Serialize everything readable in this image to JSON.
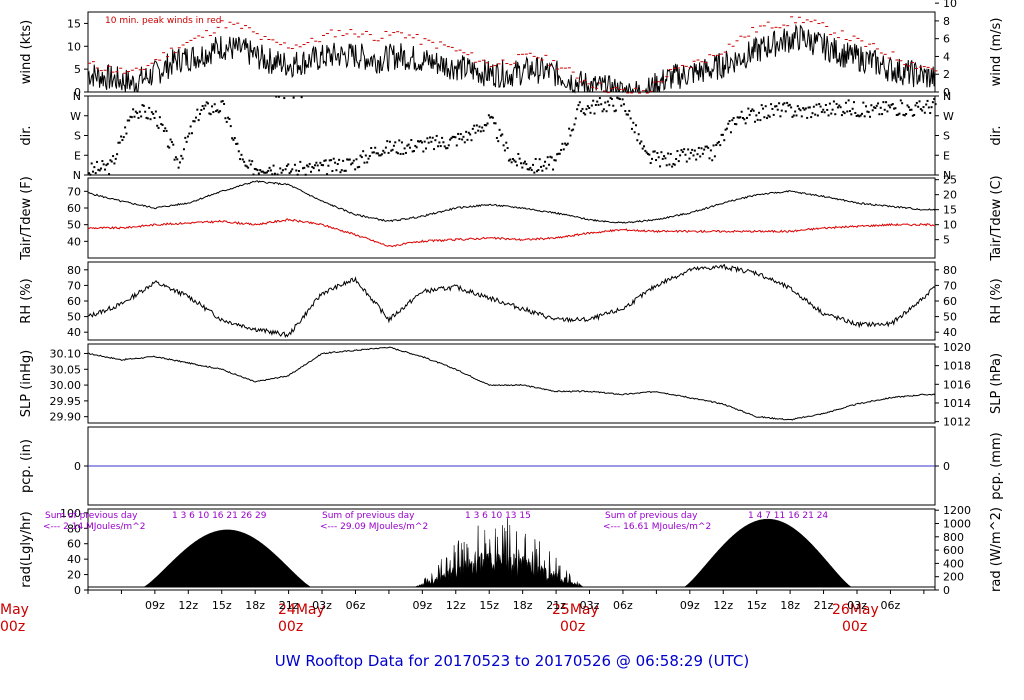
{
  "title": "UW Rooftop Data for 20170523  to  20170526 @ 06:58:29  (UTC)",
  "chart_data": [
    {
      "type": "line",
      "panel": "wind",
      "ylabel_left": "wind (kts)",
      "ylabel_right": "wind (m/s)",
      "ylim": [
        0,
        17.5
      ],
      "yticks_left": [
        "0",
        "5",
        "10",
        "15"
      ],
      "yticks_right": [
        "0",
        "2",
        "4",
        "6",
        "8",
        "10"
      ],
      "annotation": "10 min. peak winds in red",
      "series": [
        {
          "color": "#000000",
          "x": [
            0,
            2,
            4,
            6,
            8,
            10,
            12,
            14,
            16,
            18,
            20,
            22,
            24,
            26,
            28,
            30,
            32,
            34,
            36,
            38,
            40,
            42,
            44,
            46,
            48,
            50,
            52,
            54,
            56,
            58,
            60,
            62,
            64,
            66,
            68,
            70,
            72,
            74,
            76
          ],
          "values": [
            4,
            3,
            2,
            4,
            7,
            8,
            10,
            9,
            7,
            6,
            7,
            8,
            8,
            7,
            8,
            7,
            6,
            5,
            4,
            4,
            5,
            4,
            2,
            1,
            0,
            0,
            3,
            4,
            5,
            7,
            9,
            11,
            12,
            10,
            8,
            7,
            5,
            4,
            3
          ]
        },
        {
          "color": "#cc0000",
          "x": [
            0,
            2,
            4,
            6,
            8,
            10,
            12,
            14,
            16,
            18,
            20,
            22,
            24,
            26,
            28,
            30,
            32,
            34,
            36,
            38,
            40,
            42,
            44,
            46,
            48,
            50,
            52,
            54,
            56,
            58,
            60,
            62,
            64,
            66,
            68,
            70,
            72,
            74,
            76
          ],
          "values": [
            6,
            5,
            4,
            7,
            10,
            12,
            15,
            14,
            11,
            10,
            11,
            13,
            13,
            12,
            13,
            11,
            10,
            8,
            6,
            7,
            8,
            6,
            3,
            1,
            0,
            0,
            4,
            6,
            8,
            11,
            14,
            15,
            16,
            14,
            12,
            10,
            8,
            6,
            5
          ]
        }
      ]
    },
    {
      "type": "scatter",
      "panel": "dir",
      "ylabel_left": "dir.",
      "ylabel_right": "dir.",
      "yticks": [
        "N",
        "E",
        "S",
        "W",
        "N"
      ],
      "ylim": [
        0,
        360
      ],
      "x": [
        0,
        2,
        4,
        6,
        8,
        10,
        12,
        14,
        16,
        18,
        20,
        22,
        24,
        26,
        28,
        30,
        32,
        34,
        36,
        38,
        40,
        42,
        44,
        46,
        48,
        50,
        52,
        54,
        56,
        58,
        60,
        62,
        64,
        66,
        68,
        70,
        72,
        74,
        76
      ],
      "values": [
        20,
        40,
        300,
        270,
        60,
        300,
        310,
        30,
        40,
        20,
        30,
        40,
        60,
        120,
        130,
        140,
        150,
        180,
        250,
        70,
        40,
        60,
        300,
        320,
        330,
        80,
        70,
        90,
        100,
        260,
        280,
        300,
        290,
        300,
        310,
        290,
        310,
        300,
        320
      ]
    },
    {
      "type": "line",
      "panel": "temp",
      "ylabel_left": "Tair/Tdew (F)",
      "ylabel_right": "Tair/Tdew (C)",
      "ylim": [
        30,
        78
      ],
      "yticks_left": [
        "40",
        "50",
        "60",
        "70"
      ],
      "yticks_right": [
        "5",
        "10",
        "15",
        "20",
        "25"
      ],
      "series": [
        {
          "name": "",
          "color": "#000000",
          "x": [
            0,
            3,
            6,
            9,
            12,
            15,
            18,
            21,
            24,
            27,
            30,
            33,
            36,
            39,
            42,
            45,
            48,
            51,
            54,
            57,
            60,
            63,
            66,
            69,
            72,
            75,
            76
          ],
          "values": [
            69,
            64,
            60,
            63,
            70,
            76,
            74,
            64,
            56,
            52,
            55,
            60,
            62,
            60,
            57,
            53,
            51,
            53,
            57,
            63,
            68,
            70,
            67,
            63,
            61,
            59,
            59
          ]
        },
        {
          "name": "",
          "color": "#dd0000",
          "x": [
            0,
            3,
            6,
            9,
            12,
            15,
            18,
            21,
            24,
            27,
            30,
            33,
            36,
            39,
            42,
            45,
            48,
            51,
            54,
            57,
            60,
            63,
            66,
            69,
            72,
            75,
            76
          ],
          "values": [
            48,
            48,
            50,
            51,
            52,
            50,
            53,
            50,
            44,
            37,
            40,
            41,
            42,
            41,
            42,
            45,
            47,
            46,
            46,
            46,
            46,
            46,
            48,
            49,
            50,
            50,
            50
          ]
        }
      ]
    },
    {
      "type": "line",
      "panel": "rh",
      "ylabel_left": "RH (%)",
      "ylabel_right": "RH (%)",
      "ylim": [
        35,
        85
      ],
      "yticks": [
        "40",
        "50",
        "60",
        "70",
        "80"
      ],
      "x": [
        0,
        3,
        6,
        9,
        12,
        15,
        18,
        21,
        24,
        27,
        30,
        33,
        36,
        39,
        42,
        45,
        48,
        51,
        54,
        57,
        60,
        63,
        66,
        69,
        72,
        75,
        76
      ],
      "values": [
        50,
        58,
        72,
        63,
        48,
        42,
        38,
        65,
        74,
        48,
        66,
        69,
        62,
        55,
        48,
        48,
        55,
        70,
        80,
        82,
        78,
        68,
        52,
        45,
        45,
        62,
        70
      ]
    },
    {
      "type": "line",
      "panel": "slp",
      "ylabel_left": "SLP (inHg)",
      "ylabel_right": "SLP (hPa)",
      "ylim": [
        29.88,
        30.13
      ],
      "yticks_left": [
        "29.90",
        "29.95",
        "30.00",
        "30.05",
        "30.10"
      ],
      "yticks_right": [
        "1012",
        "1014",
        "1016",
        "1018",
        "1020"
      ],
      "x": [
        0,
        3,
        6,
        9,
        12,
        15,
        18,
        21,
        24,
        27,
        30,
        33,
        36,
        39,
        42,
        45,
        48,
        51,
        54,
        57,
        60,
        63,
        66,
        69,
        72,
        75,
        76
      ],
      "values": [
        30.1,
        30.08,
        30.09,
        30.07,
        30.05,
        30.01,
        30.03,
        30.1,
        30.11,
        30.12,
        30.09,
        30.05,
        30.0,
        30.0,
        29.98,
        29.98,
        29.97,
        29.98,
        29.96,
        29.94,
        29.9,
        29.89,
        29.91,
        29.94,
        29.96,
        29.97,
        29.97
      ]
    },
    {
      "type": "line",
      "panel": "pcp",
      "ylabel_left": "pcp. (in)",
      "ylabel_right": "pcp. (mm)",
      "yticks_left": [
        "0"
      ],
      "yticks_right": [
        "0"
      ],
      "x": [
        0,
        76
      ],
      "values": [
        0,
        0
      ]
    },
    {
      "type": "area",
      "panel": "rad",
      "ylabel_left": "rad(Lgly/hr)",
      "ylabel_right": "rad (W/m^2)",
      "ylim": [
        0,
        105
      ],
      "yticks_left": [
        "0",
        "20",
        "40",
        "60",
        "80",
        "100"
      ],
      "yticks_right": [
        "0",
        "200",
        "400",
        "600",
        "800",
        "1000",
        "1200"
      ],
      "days": [
        {
          "start": 5.0,
          "end": 20.0,
          "peak": 80,
          "cloudy": false
        },
        {
          "start": 29.3,
          "end": 44.5,
          "peak": 100,
          "cloudy": true
        },
        {
          "start": 53.5,
          "end": 68.5,
          "peak": 95,
          "cloudy": false
        }
      ],
      "annotations": [
        {
          "line1": "Sum of previous day",
          "line2": "<--- 2.14 MJoules/m^2",
          "hours": "1 3 6 10 16 21 26 29"
        },
        {
          "line1": "Sum of previous day",
          "line2": "<--- 29.09 MJoules/m^2",
          "hours": "1 3 6 10 13 15"
        },
        {
          "line1": "Sum of previous day",
          "line2": "<--- 16.61 MJoules/m^2",
          "hours": "1 4 7 11 16 21 24"
        }
      ]
    }
  ],
  "time_axis": {
    "ticks": [
      "09z",
      "12z",
      "15z",
      "18z",
      "21z",
      "03z",
      "06z",
      "09z",
      "12z",
      "15z",
      "18z",
      "21z",
      "03z",
      "06z",
      "09z",
      "12z",
      "15z",
      "18z",
      "21z",
      "03z",
      "06z"
    ],
    "days": [
      {
        "date": "May",
        "time": "00z"
      },
      {
        "date": "24May",
        "time": "00z"
      },
      {
        "date": "25May",
        "time": "00z"
      },
      {
        "date": "26May",
        "time": "00z"
      }
    ]
  }
}
